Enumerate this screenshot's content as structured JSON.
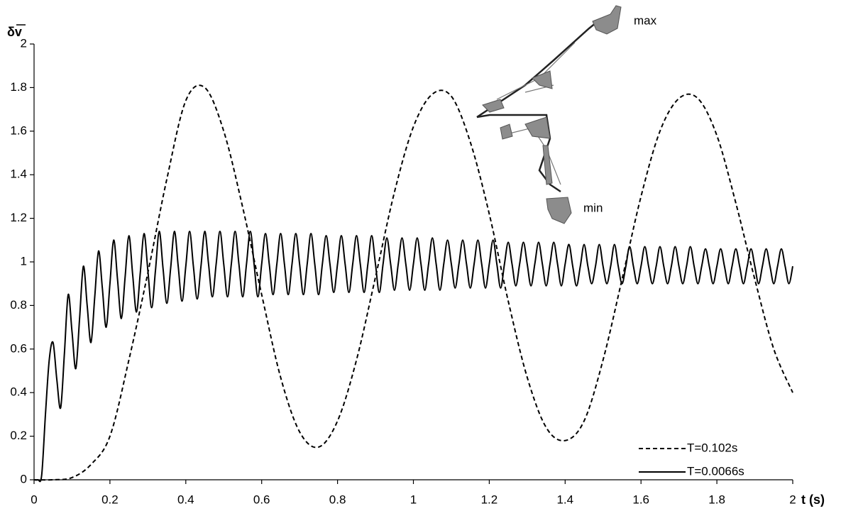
{
  "chart_data": {
    "type": "line",
    "y_label": "δv",
    "x_label": "t (s)",
    "annotations": [
      "max",
      "min"
    ],
    "xlim": [
      0,
      2
    ],
    "ylim": [
      0,
      2
    ],
    "xticks": [
      0,
      0.2,
      0.4,
      0.6,
      0.8,
      1,
      1.2,
      1.4,
      1.6,
      1.8,
      2
    ],
    "yticks": [
      0,
      0.2,
      0.4,
      0.6,
      0.8,
      1,
      1.2,
      1.4,
      1.6,
      1.8,
      2
    ],
    "grid": false,
    "legend": "lower right",
    "series": [
      {
        "name": "T=0.102s",
        "color": "#000000",
        "linestyle": "dashed",
        "x": [
          0,
          0.05,
          0.1,
          0.15,
          0.2,
          0.25,
          0.3,
          0.35,
          0.4,
          0.45,
          0.5,
          0.55,
          0.6,
          0.65,
          0.7,
          0.75,
          0.8,
          0.85,
          0.9,
          0.95,
          1,
          1.05,
          1.1,
          1.15,
          1.2,
          1.25,
          1.3,
          1.35,
          1.4,
          1.45,
          1.5,
          1.55,
          1.6,
          1.65,
          1.7,
          1.75,
          1.8,
          1.85,
          1.9,
          1.95,
          2
        ],
        "values": [
          0,
          0,
          0.01,
          0.07,
          0.2,
          0.55,
          0.95,
          1.38,
          1.74,
          1.8,
          1.6,
          1.25,
          0.85,
          0.47,
          0.22,
          0.15,
          0.27,
          0.55,
          0.93,
          1.32,
          1.62,
          1.77,
          1.76,
          1.55,
          1.22,
          0.82,
          0.47,
          0.24,
          0.18,
          0.27,
          0.55,
          0.92,
          1.3,
          1.6,
          1.75,
          1.75,
          1.58,
          1.27,
          0.92,
          0.6,
          0.4
        ]
      },
      {
        "name": "T=0.0066s",
        "color": "#000000",
        "linestyle": "solid",
        "x": [
          0,
          0.01,
          0.02,
          0.03,
          0.04,
          0.05,
          0.06,
          0.07,
          0.08,
          0.09,
          0.1,
          0.11,
          0.12,
          0.13,
          0.14,
          0.15,
          0.16,
          0.17,
          0.18,
          0.19,
          0.2,
          0.21,
          0.22,
          0.23,
          0.24,
          0.25,
          0.26,
          0.27,
          0.28,
          0.29,
          0.3,
          0.31,
          0.32,
          0.33,
          0.34,
          0.35,
          0.36,
          0.37,
          0.38,
          0.39,
          0.4,
          0.41,
          0.42,
          0.43,
          0.44,
          0.45,
          0.46,
          0.47,
          0.48,
          0.49,
          0.5,
          0.51,
          0.52,
          0.53,
          0.54,
          0.55,
          0.56,
          0.57,
          0.58,
          0.59,
          0.6,
          0.61,
          0.62,
          0.63,
          0.64,
          0.65,
          0.66,
          0.67,
          0.68,
          0.69,
          0.7,
          0.71,
          0.72,
          0.73,
          0.74,
          0.75,
          0.76,
          0.77,
          0.78,
          0.79,
          0.8,
          0.81,
          0.82,
          0.83,
          0.84,
          0.85,
          0.86,
          0.87,
          0.88,
          0.89,
          0.9,
          0.91,
          0.92,
          0.93,
          0.94,
          0.95,
          0.96,
          0.97,
          0.98,
          0.99,
          1,
          1.01,
          1.02,
          1.03,
          1.04,
          1.05,
          1.06,
          1.07,
          1.08,
          1.09,
          1.1,
          1.11,
          1.12,
          1.13,
          1.14,
          1.15,
          1.16,
          1.17,
          1.18,
          1.19,
          1.2,
          1.21,
          1.22,
          1.23,
          1.24,
          1.25,
          1.26,
          1.27,
          1.28,
          1.29,
          1.3,
          1.31,
          1.32,
          1.33,
          1.34,
          1.35,
          1.36,
          1.37,
          1.38,
          1.39,
          1.4,
          1.41,
          1.42,
          1.43,
          1.44,
          1.45,
          1.46,
          1.47,
          1.48,
          1.49,
          1.5,
          1.51,
          1.52,
          1.53,
          1.54,
          1.55,
          1.56,
          1.57,
          1.58,
          1.59,
          1.6,
          1.61,
          1.62,
          1.63,
          1.64,
          1.65,
          1.66,
          1.67,
          1.68,
          1.69,
          1.7,
          1.71,
          1.72,
          1.73,
          1.74,
          1.75,
          1.76,
          1.77,
          1.78,
          1.79,
          1.8,
          1.81,
          1.82,
          1.83,
          1.84,
          1.85,
          1.86,
          1.87,
          1.88,
          1.89,
          1.9,
          1.91,
          1.92,
          1.93,
          1.94,
          1.95,
          1.96,
          1.97,
          1.98,
          1.99,
          2
        ],
        "values": [
          0,
          0,
          0.02,
          0.3,
          0.55,
          0.63,
          0.46,
          0.33,
          0.58,
          0.85,
          0.68,
          0.51,
          0.74,
          0.98,
          0.8,
          0.63,
          0.84,
          1.05,
          0.88,
          0.7,
          0.9,
          1.1,
          0.92,
          0.74,
          0.93,
          1.12,
          0.94,
          0.77,
          0.95,
          1.13,
          0.96,
          0.79,
          0.96,
          1.14,
          0.97,
          0.81,
          0.97,
          1.14,
          0.98,
          0.82,
          0.98,
          1.14,
          0.98,
          0.83,
          0.98,
          1.14,
          0.99,
          0.84,
          0.99,
          1.14,
          0.99,
          0.84,
          0.99,
          1.14,
          0.99,
          0.84,
          0.99,
          1.14,
          0.99,
          0.84,
          0.99,
          1.13,
          0.99,
          0.85,
          0.99,
          1.13,
          0.99,
          0.85,
          0.99,
          1.13,
          0.99,
          0.85,
          0.99,
          1.13,
          0.99,
          0.85,
          0.99,
          1.12,
          0.99,
          0.86,
          0.99,
          1.12,
          0.99,
          0.86,
          0.99,
          1.12,
          0.99,
          0.86,
          0.99,
          1.12,
          0.99,
          0.86,
          0.99,
          1.11,
          0.99,
          0.87,
          0.99,
          1.11,
          0.99,
          0.87,
          0.99,
          1.11,
          0.99,
          0.87,
          0.99,
          1.11,
          0.99,
          0.87,
          0.99,
          1.1,
          0.99,
          0.88,
          0.99,
          1.1,
          0.99,
          0.88,
          0.99,
          1.1,
          0.99,
          0.88,
          0.99,
          1.1,
          0.99,
          0.88,
          0.99,
          1.09,
          0.99,
          0.89,
          0.99,
          1.09,
          0.99,
          0.89,
          0.99,
          1.09,
          0.99,
          0.89,
          0.99,
          1.09,
          0.99,
          0.89,
          0.99,
          1.08,
          0.98,
          0.89,
          0.98,
          1.08,
          0.98,
          0.9,
          0.98,
          1.08,
          0.98,
          0.9,
          0.98,
          1.08,
          0.98,
          0.9,
          0.98,
          1.07,
          0.98,
          0.9,
          0.98,
          1.07,
          0.98,
          0.9,
          0.98,
          1.07,
          0.98,
          0.9,
          0.98,
          1.07,
          0.98,
          0.9,
          0.98,
          1.07,
          0.98,
          0.9,
          0.98,
          1.06,
          0.98,
          0.9,
          0.98,
          1.06,
          0.98,
          0.9,
          0.98,
          1.06,
          0.98,
          0.9,
          0.98,
          1.06,
          0.98,
          0.9,
          0.98,
          1.06,
          0.98,
          0.9,
          0.98,
          1.06,
          0.98,
          0.9,
          0.98
        ]
      }
    ]
  }
}
